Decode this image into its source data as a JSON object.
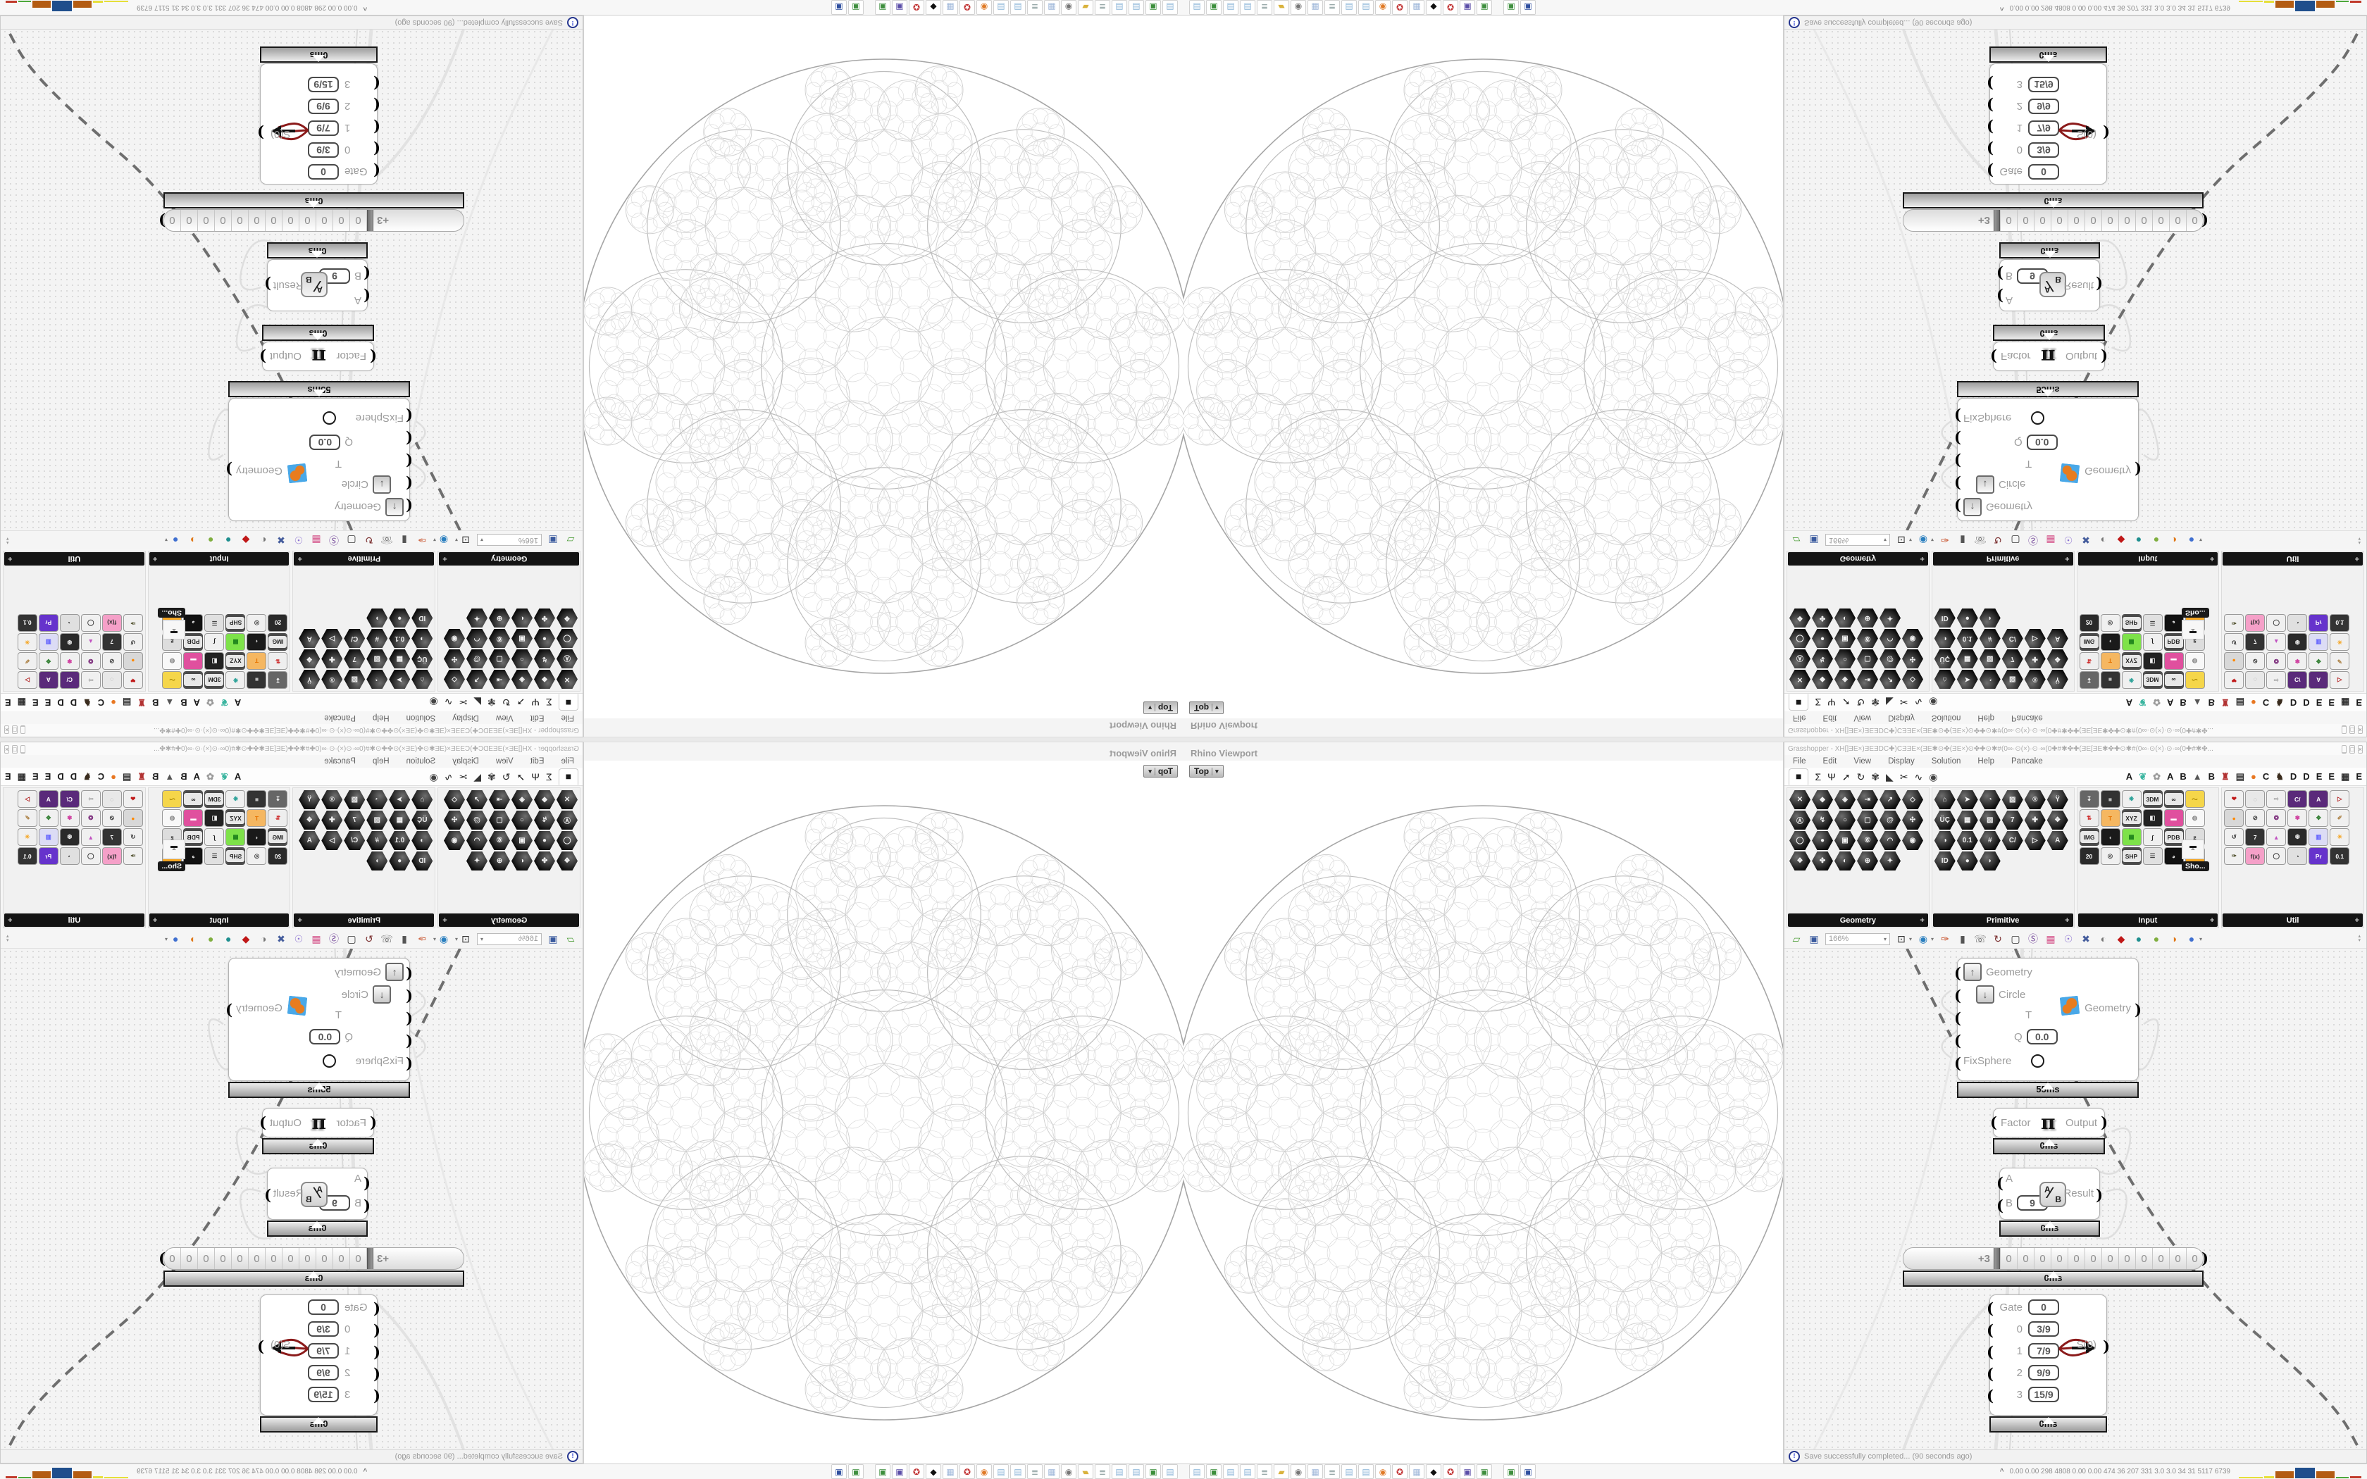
{
  "viewport": {
    "title": "Rhino Viewport",
    "projection": "Top",
    "caret": "▾"
  },
  "gh": {
    "title": "Grasshopper - XH[]ƎE×)ƎEƎDC✚)CƎƎE×(ƎE✱⊙✤(ƎE×)⊙✤✚⊙✱#(0∞·⊙(×)·⊙·∞(0✚#✱✤✚(ƎE[ƎE✱✤✚⊙✱#(0∞·⊙(×)·⊙·∞(0✚#✱✤...",
    "window_buttons": [
      "_",
      "□",
      "×"
    ],
    "menu": [
      "File",
      "Edit",
      "View",
      "Display",
      "Solution",
      "Help",
      "Pancake"
    ],
    "tabs_left": [
      {
        "g": "■",
        "c": "#1a1a1a",
        "sel": true
      },
      {
        "g": "Σ",
        "c": "#222"
      },
      {
        "g": "Ψ",
        "c": "#222"
      },
      {
        "g": "➚",
        "c": "#222"
      },
      {
        "g": "↻",
        "c": "#222"
      },
      {
        "g": "✾",
        "c": "#333"
      },
      {
        "g": "◣",
        "c": "#333"
      },
      {
        "g": "✂",
        "c": "#222"
      },
      {
        "g": "∿",
        "c": "#222"
      },
      {
        "g": "◉",
        "c": "#444"
      }
    ],
    "tabs_right": [
      {
        "g": "A",
        "c": "#1a1a1a"
      },
      {
        "g": "❦",
        "c": "#3bb5a0"
      },
      {
        "g": "✿",
        "c": "#9a9a9a"
      },
      {
        "g": "A",
        "c": "#1a1a1a"
      },
      {
        "g": "B",
        "c": "#1a1a1a"
      },
      {
        "g": "▲",
        "c": "#555"
      },
      {
        "g": "B",
        "c": "#1a1a1a"
      },
      {
        "g": "♜",
        "c": "#b23333"
      },
      {
        "g": "▤",
        "c": "#333"
      },
      {
        "g": "●",
        "c": "#e87722"
      },
      {
        "g": "C",
        "c": "#1a1a1a"
      },
      {
        "g": "♞",
        "c": "#3a2c1e"
      },
      {
        "g": "D",
        "c": "#1a1a1a"
      },
      {
        "g": "D",
        "c": "#1a1a1a"
      },
      {
        "g": "E",
        "c": "#1a1a1a"
      },
      {
        "g": "E",
        "c": "#1a1a1a"
      },
      {
        "g": "▦",
        "c": "#333"
      },
      {
        "g": "E",
        "c": "#1a1a1a"
      }
    ],
    "palette_expand": "+",
    "palette": [
      {
        "label": "Geometry",
        "style": "hex",
        "icons": [
          "✕",
          "◆",
          "◈",
          "⇥",
          "↗",
          "◇",
          "Ⓐ",
          "↯",
          "○",
          "▢",
          "@",
          "✣",
          "◯",
          "●",
          "▣",
          "⑥",
          "◠",
          "◉",
          "❖",
          "✤",
          "◐",
          "⊕",
          "✦"
        ]
      },
      {
        "label": "Primitive",
        "style": "hex",
        "icons": [
          "⌂",
          "➤",
          "◔",
          "▨",
          "®",
          "Ϋ",
          "ÜÇ",
          "▦",
          "▧",
          "7",
          "✚",
          "❖",
          "◑",
          "0.1",
          "#",
          "C/",
          "▷",
          "A",
          "ID",
          "●",
          "◗"
        ]
      },
      {
        "label": "Input",
        "style": "tile",
        "icons": [
          [
            "↧",
            "#ffffff",
            "#666666",
            0
          ],
          [
            "■",
            "#bbbbbb",
            "#333333",
            0
          ],
          [
            "❋",
            "#2aa198",
            "#f0f0f0",
            0
          ],
          [
            "3DM",
            "#222222",
            "#e8e8e8",
            1
          ],
          [
            "∞",
            "#222222",
            "#e8e8e8",
            1
          ],
          [
            "〜",
            "#aa8800",
            "#f5d64a",
            0
          ],
          [
            "⇅",
            "#cc2222",
            "#eeeeee",
            0
          ],
          [
            "T",
            "#e67300",
            "#f5b761",
            0
          ],
          [
            "XYZ",
            "#222222",
            "#e8e8e8",
            1
          ],
          [
            "◧",
            "#eeeeee",
            "#222222",
            0
          ],
          [
            "▬",
            "#ffffff",
            "#e0509e",
            0
          ],
          [
            "◍",
            "#888888",
            "#f8f8f8",
            0
          ],
          [
            "IMG",
            "#222222",
            "#e8e8e8",
            1
          ],
          [
            "◖",
            "#cccccc",
            "#1a1a1a",
            0
          ],
          [
            "▦",
            "#1a7f1a",
            "#7ee24a",
            0
          ],
          [
            "∫",
            "#222222",
            "#f0f0f0",
            0
          ],
          [
            "PDB",
            "#222222",
            "#e8e8e8",
            1
          ],
          [
            "ƶ",
            "#333333",
            "#dddddd",
            0
          ],
          [
            "20",
            "#ffffff",
            "#2a2a2a",
            0
          ],
          [
            "◎",
            "#444444",
            "#f0f0f0",
            0
          ],
          [
            "SHP",
            "#222222",
            "#e8e8e8",
            1
          ],
          [
            "☰",
            "#444444",
            "#e0e0e0",
            0
          ],
          [
            "◕",
            "#dddddd",
            "#111111",
            0
          ],
          [
            "ID.",
            "#b34700",
            "#f5a623",
            0
          ]
        ]
      },
      {
        "label": "Util",
        "style": "tile",
        "icons": [
          [
            "❤",
            "#c01818",
            "#f0f0f0",
            0
          ],
          [
            "◌",
            "#888888",
            "#e8e8e8",
            0
          ],
          [
            "⇨",
            "#aaaaaa",
            "#f0f0f0",
            0
          ],
          [
            "C/",
            "#ffffff",
            "#5a2a7a",
            0
          ],
          [
            "A",
            "#ffffff",
            "#5a2a7a",
            0
          ],
          [
            "▷",
            "#b22222",
            "#f0f0f0",
            0
          ],
          [
            "●",
            "#ff8800",
            "#d8d8d8",
            0
          ],
          [
            "⊘",
            "#333333",
            "#f0f0f0",
            0
          ],
          [
            "❂",
            "#7a2a7a",
            "#f0f0f0",
            0
          ],
          [
            "✾",
            "#d040a0",
            "#f0f0f0",
            0
          ],
          [
            "✥",
            "#2a7a2a",
            "#f0f0f0",
            0
          ],
          [
            "✐",
            "#b08850",
            "#f0f0f0",
            0
          ],
          [
            "↺",
            "#333333",
            "#f0f0f0",
            0
          ],
          [
            "7",
            "#ffffff",
            "#333333",
            0
          ],
          [
            "▲",
            "#c050c0",
            "#f0f0f0",
            0
          ],
          [
            "❆",
            "#eeeeee",
            "#2a2a2a",
            0
          ],
          [
            "▥",
            "#5555ff",
            "#dcdcf5",
            0
          ],
          [
            "☀",
            "#f5a623",
            "#f0f0f0",
            0
          ],
          [
            "✑",
            "#555533",
            "#f0f0f0",
            0
          ],
          [
            "f(x)",
            "#333333",
            "#f5a0c8",
            0
          ],
          [
            "◯",
            "#333333",
            "#f0f0f0",
            0
          ],
          [
            "◔",
            "#222222",
            "#e0e0e0",
            0
          ],
          [
            "Pr",
            "#ffffff",
            "#6633cc",
            0
          ],
          [
            "0.1",
            "#ffffff",
            "#333333",
            0
          ]
        ]
      }
    ],
    "sho_tooltip": "Sho...",
    "sho_glyphs": [
      "▬",
      "⌃"
    ],
    "toolbar": {
      "zoom": "166%",
      "icons_left": [
        {
          "n": "open-file-icon",
          "g": "▱",
          "c": "#4f9e3a"
        },
        {
          "n": "save-file-icon",
          "g": "▣",
          "c": "#3a5a9e"
        }
      ],
      "icons_right": [
        {
          "n": "zoom-extents-icon",
          "g": "⊡",
          "c": "#333333",
          "car": 1
        },
        {
          "n": "preview-eye-icon",
          "g": "◉",
          "c": "#2a7fbf",
          "car": 1
        },
        {
          "n": "sketch-pen-icon",
          "g": "✑",
          "c": "#c4441a"
        },
        {
          "n": "baked-geometry-icon",
          "g": "▮",
          "c": "#555555"
        },
        {
          "n": "remote-device-icon",
          "g": "☏",
          "c": "#555555"
        },
        {
          "n": "recompute-gha-icon",
          "g": "↻",
          "c": "#7a2f2f"
        },
        {
          "n": "window-layout-icon",
          "g": "▢",
          "c": "#333333"
        },
        {
          "n": "finder-icon",
          "g": "Ⓢ",
          "c": "#7a4f9e"
        },
        {
          "n": "mystery-box-icon",
          "g": "▦",
          "c": "#d5568c"
        },
        {
          "n": "lamp-icon",
          "g": "☉",
          "c": "#8a6fd0"
        },
        {
          "n": "wire-display-icon",
          "g": "✖",
          "c": "#445c9c"
        },
        {
          "n": "group-spheres-icon",
          "g": "◐",
          "c": "#777777"
        },
        {
          "n": "gem-icon",
          "g": "◆",
          "c": "#c01818"
        },
        {
          "n": "ball-teal-icon",
          "g": "●",
          "c": "#1f8f8f"
        },
        {
          "n": "ball-green-icon",
          "g": "●",
          "c": "#7fae3f"
        },
        {
          "n": "ball-orange-icon",
          "g": "◑",
          "c": "#e07818"
        },
        {
          "n": "ball-blue-icon",
          "g": "●",
          "c": "#3f6fd0",
          "car": 1
        }
      ],
      "scroll_arrows": [
        "▴",
        "▾"
      ]
    },
    "nodes": {
      "fixsphere": {
        "inputs": [
          {
            "label": "Geometry",
            "button": "↑"
          },
          {
            "label": "Circle",
            "button": "↓"
          },
          {
            "label": "T"
          },
          {
            "label": "Q",
            "value": "0.0"
          },
          {
            "label": "FixSphere",
            "toggle": true
          }
        ],
        "output": "Geometry",
        "time": "55ms"
      },
      "factor": {
        "input": "Factor",
        "glyph": "π",
        "output": "Output",
        "time": "0ms"
      },
      "division": {
        "input_a": "A",
        "input_b": "B",
        "b_value": "9",
        "icon_a": "A",
        "icon_slash": "∕",
        "icon_b": "B",
        "output": "Result",
        "time": "0ms"
      },
      "scroller": {
        "sign": "+",
        "lead_digit": "3",
        "digits": [
          "0",
          "0",
          "0",
          "0",
          "0",
          "0",
          "0",
          "0",
          "0",
          "0",
          "0",
          "0"
        ],
        "time": "0ms"
      },
      "gate": {
        "rows": [
          [
            "Gate",
            "0"
          ],
          [
            "0",
            "3/9"
          ],
          [
            "1",
            "7/9"
          ],
          [
            "2",
            "9/9"
          ],
          [
            "3",
            "15/9"
          ]
        ],
        "output": "S(0)",
        "time": "0ms"
      }
    },
    "status": {
      "icon": "!",
      "text": "Save successfully completed... (90 seconds ago)"
    }
  },
  "taskbar": {
    "chevron": "^",
    "stats": "0.00 0.00  298  4808 0.00 0.00  474   36   207   331   3.0   3.0   34   31  5117 6739",
    "apps": [
      {
        "n": "app-notepad",
        "g": "▤",
        "c": "#8ab4d8"
      },
      {
        "n": "app-monitor",
        "g": "▣",
        "c": "#3c8f3c"
      },
      {
        "n": "app-notepad",
        "g": "▤",
        "c": "#8ab4d8"
      },
      {
        "n": "app-notepad",
        "g": "▤",
        "c": "#8ab4d8"
      },
      {
        "n": "app-scroll",
        "g": "≣",
        "c": "#99aaaa"
      },
      {
        "n": "app-folder",
        "g": "▰",
        "c": "#d9b23c"
      },
      {
        "n": "app-media-player",
        "g": "◉",
        "c": "#777777"
      },
      {
        "n": "app-calculator",
        "g": "▦",
        "c": "#9db6d9"
      },
      {
        "n": "app-scroll",
        "g": "≣",
        "c": "#99aaaa"
      },
      {
        "n": "app-notepad",
        "g": "▤",
        "c": "#8ab4d8"
      },
      {
        "n": "app-notepad",
        "g": "▤",
        "c": "#8ab4d8"
      },
      {
        "n": "app-firefox",
        "g": "◉",
        "c": "#e07b28"
      },
      {
        "n": "app-red-badge",
        "g": "✪",
        "c": "#c03030"
      },
      {
        "n": "app-calculator",
        "g": "▦",
        "c": "#9db6d9"
      },
      {
        "n": "app-ink-blob",
        "g": "◆",
        "c": "#111111"
      },
      {
        "n": "app-red-badge",
        "g": "✪",
        "c": "#c03030"
      },
      {
        "n": "app-floppy-purple",
        "g": "▣",
        "c": "#5b4ea8"
      },
      {
        "n": "app-floppy-green",
        "g": "▣",
        "c": "#3f8f3f"
      },
      {
        "n": "app-floppy-green",
        "g": "▣",
        "c": "#3f8f3f"
      },
      {
        "n": "app-floppy-64",
        "g": "▣",
        "c": "#2f4f9f"
      }
    ],
    "spark": [
      {
        "c": "#e6df3a",
        "h": 2,
        "w": 34
      },
      {
        "c": "#e6df3a",
        "h": 3,
        "w": 14
      },
      {
        "c": "#b35c12",
        "h": 10,
        "w": 26
      },
      {
        "c": "#1f4e8c",
        "h": 15,
        "w": 28
      },
      {
        "c": "#b35c12",
        "h": 10,
        "w": 26
      },
      {
        "c": "#4ea83c",
        "h": 2,
        "w": 18
      },
      {
        "c": "#c03a2b",
        "h": 3,
        "w": 16
      }
    ]
  }
}
